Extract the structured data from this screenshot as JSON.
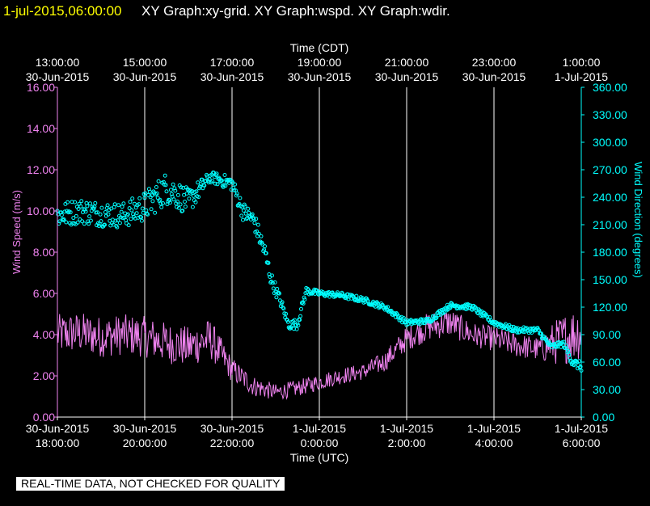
{
  "header": {
    "timestamp": "1-jul-2015,06:00:00",
    "titles": "XY Graph:xy-grid.  XY Graph:wspd.  XY Graph:wdir."
  },
  "notice": "REAL-TIME DATA, NOT CHECKED FOR QUALITY",
  "colors": {
    "background": "#000000",
    "grid": "#ffffff",
    "wind_speed": "#ee82ee",
    "wind_direction": "#00ffff",
    "header_time": "#ffff00"
  },
  "chart_data": {
    "type": "line",
    "x_range_utc": [
      "2015-06-30 18:00",
      "2015-07-01 06:00"
    ],
    "top_axis": {
      "label": "Time (CDT)",
      "ticks": [
        {
          "time": "13:00:00",
          "date": "30-Jun-2015"
        },
        {
          "time": "15:00:00",
          "date": "30-Jun-2015"
        },
        {
          "time": "17:00:00",
          "date": "30-Jun-2015"
        },
        {
          "time": "19:00:00",
          "date": "30-Jun-2015"
        },
        {
          "time": "21:00:00",
          "date": "30-Jun-2015"
        },
        {
          "time": "23:00:00",
          "date": "30-Jun-2015"
        },
        {
          "time": "1:00:00",
          "date": "1-Jul-2015"
        }
      ]
    },
    "bottom_axis": {
      "label": "Time (UTC)",
      "ticks": [
        {
          "date": "30-Jun-2015",
          "time": "18:00:00"
        },
        {
          "date": "30-Jun-2015",
          "time": "20:00:00"
        },
        {
          "date": "30-Jun-2015",
          "time": "22:00:00"
        },
        {
          "date": "1-Jul-2015",
          "time": "0:00:00"
        },
        {
          "date": "1-Jul-2015",
          "time": "2:00:00"
        },
        {
          "date": "1-Jul-2015",
          "time": "4:00:00"
        },
        {
          "date": "1-Jul-2015",
          "time": "6:00:00"
        }
      ]
    },
    "left_axis": {
      "label": "Wind Speed (m/s)",
      "ylim": [
        0,
        16
      ],
      "ticks": [
        "0.00",
        "2.00",
        "4.00",
        "6.00",
        "8.00",
        "10.00",
        "12.00",
        "14.00",
        "16.00"
      ]
    },
    "right_axis": {
      "label": "Wind Direction (degrees)",
      "ylim": [
        0,
        360
      ],
      "ticks": [
        "0.00",
        "30.00",
        "60.00",
        "90.00",
        "120.00",
        "150.00",
        "180.00",
        "210.00",
        "240.00",
        "270.00",
        "300.00",
        "330.00",
        "360.00"
      ]
    },
    "grid": "vertical lines at bottom-axis ticks",
    "series": [
      {
        "name": "Wind Speed",
        "units": "m/s",
        "style": "line",
        "x_hours_utc": [
          18.0,
          18.5,
          19.0,
          19.5,
          20.0,
          20.5,
          21.0,
          21.5,
          22.0,
          22.5,
          23.0,
          23.5,
          24.0,
          24.5,
          25.0,
          25.5,
          26.0,
          26.5,
          27.0,
          27.5,
          28.0,
          28.5,
          29.0,
          29.5,
          30.0
        ],
        "values": [
          4.0,
          4.1,
          3.9,
          4.0,
          3.9,
          3.6,
          3.4,
          3.8,
          2.3,
          1.5,
          1.2,
          1.4,
          1.7,
          2.0,
          2.2,
          2.7,
          3.8,
          4.4,
          4.6,
          4.0,
          3.8,
          3.5,
          3.3,
          3.7,
          4.2
        ],
        "spread": [
          1.0,
          1.0,
          1.0,
          1.0,
          1.0,
          1.0,
          1.0,
          1.0,
          0.6,
          0.5,
          0.4,
          0.4,
          0.4,
          0.4,
          0.4,
          0.5,
          0.6,
          0.7,
          0.7,
          0.6,
          0.6,
          0.6,
          0.6,
          1.2,
          1.4
        ]
      },
      {
        "name": "Wind Direction",
        "units": "degrees",
        "style": "scatter",
        "x_hours_utc": [
          18.0,
          18.5,
          19.0,
          19.5,
          20.0,
          20.5,
          21.0,
          21.5,
          22.0,
          22.25,
          22.5,
          22.75,
          22.9,
          23.1,
          23.3,
          23.5,
          23.7,
          24.0,
          24.5,
          25.0,
          25.5,
          26.0,
          26.5,
          27.0,
          27.5,
          28.0,
          28.5,
          29.0,
          29.3,
          29.6,
          29.8,
          30.0
        ],
        "values": [
          220,
          225,
          222,
          220,
          230,
          250,
          235,
          262,
          255,
          225,
          215,
          180,
          150,
          128,
          100,
          102,
          138,
          135,
          133,
          128,
          120,
          103,
          105,
          122,
          120,
          103,
          95,
          95,
          77,
          80,
          60,
          55
        ],
        "spread": [
          14,
          14,
          14,
          14,
          16,
          18,
          14,
          6,
          8,
          10,
          10,
          10,
          8,
          6,
          4,
          6,
          4,
          3,
          3,
          3,
          3,
          3,
          3,
          3,
          3,
          3,
          3,
          3,
          3,
          3,
          5,
          5
        ]
      }
    ]
  }
}
